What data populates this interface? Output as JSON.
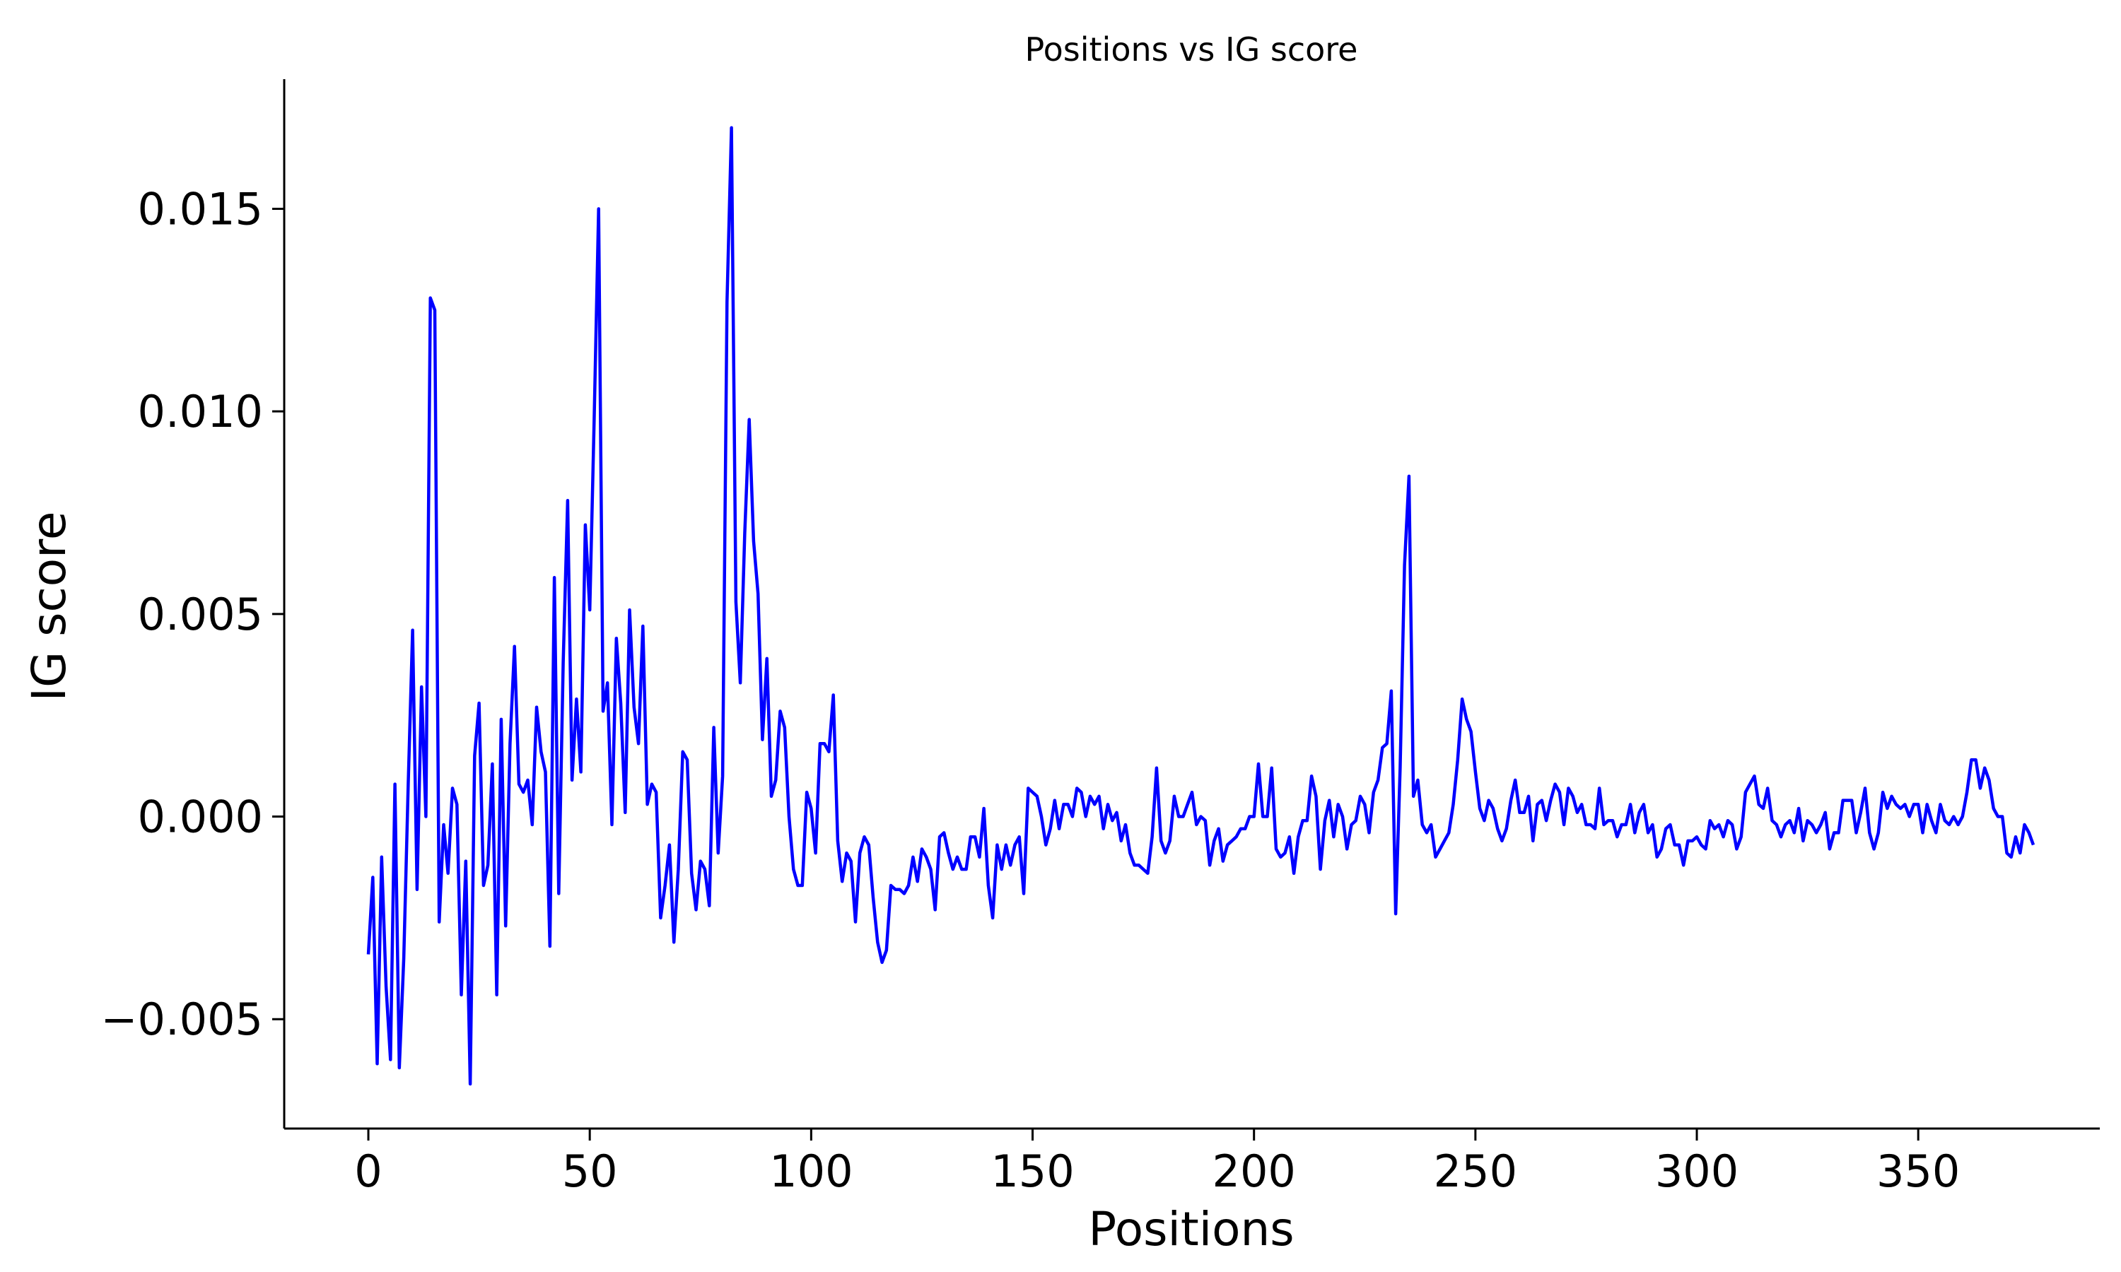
{
  "chart_data": {
    "type": "line",
    "title": "Positions vs IG score",
    "xlabel": "Positions",
    "ylabel": "IG score",
    "xlim": [
      -19,
      391
    ],
    "ylim": [
      -0.0077,
      0.0182
    ],
    "xticks": [
      0,
      50,
      100,
      150,
      200,
      250,
      300,
      350
    ],
    "xtick_labels": [
      "0",
      "50",
      "100",
      "150",
      "200",
      "250",
      "300",
      "350"
    ],
    "yticks": [
      -0.005,
      0.0,
      0.005,
      0.01,
      0.015
    ],
    "ytick_labels": [
      "−0.005",
      "0.000",
      "0.005",
      "0.010",
      "0.015"
    ],
    "grid": false,
    "legend": "none",
    "series": [
      {
        "color": "#0000ff",
        "values": [
          -0.0034,
          -0.0015,
          -0.0061,
          -0.001,
          -0.0042,
          -0.006,
          0.0008,
          -0.0062,
          -0.0035,
          0.0008,
          0.0046,
          -0.0018,
          0.0032,
          0,
          0.0128,
          0.0125,
          -0.0026,
          -0.0002,
          -0.0014,
          0.0007,
          0.0003,
          -0.0044,
          -0.0011,
          -0.0066,
          0.0015,
          0.0028,
          -0.0017,
          -0.0012,
          0.0013,
          -0.0044,
          0.0024,
          -0.0027,
          0.0018,
          0.0042,
          0.0008,
          0.0006,
          0.0009,
          -0.0002,
          0.0027,
          0.0016,
          0.0011,
          -0.0032,
          0.0059,
          -0.0019,
          0.0038,
          0.0078,
          0.0009,
          0.0029,
          0.0011,
          0.0072,
          0.0051,
          0.0098,
          0.015,
          0.0026,
          0.0033,
          -0.0002,
          0.0044,
          0.0028,
          0.0001,
          0.0051,
          0.0027,
          0.0018,
          0.0047,
          0.0003,
          0.0008,
          0.0006,
          -0.0025,
          -0.0017,
          -0.0007,
          -0.0031,
          -0.0013,
          0.0016,
          0.0014,
          -0.0014,
          -0.0023,
          -0.0011,
          -0.0013,
          -0.0022,
          0.0022,
          -0.0009,
          0.001,
          0.0127,
          0.017,
          0.0053,
          0.0033,
          0.007,
          0.0098,
          0.0068,
          0.0055,
          0.0019,
          0.0039,
          0.0005,
          0.0009,
          0.0026,
          0.0022,
          0,
          -0.0013,
          -0.0017,
          -0.0017,
          0.0006,
          0.0002,
          -0.0009,
          0.0018,
          0.0018,
          0.0016,
          0.003,
          -0.0006,
          -0.0016,
          -0.0009,
          -0.0011,
          -0.0026,
          -0.0009,
          -0.0005,
          -0.0007,
          -0.002,
          -0.0031,
          -0.0036,
          -0.0033,
          -0.0017,
          -0.0018,
          -0.0018,
          -0.0019,
          -0.0017,
          -0.001,
          -0.0016,
          -0.0008,
          -0.001,
          -0.0013,
          -0.0023,
          -0.0005,
          -0.0004,
          -0.0009,
          -0.0013,
          -0.001,
          -0.0013,
          -0.0013,
          -0.0005,
          -0.0005,
          -0.001,
          0.0002,
          -0.0017,
          -0.0025,
          -0.0007,
          -0.0013,
          -0.0007,
          -0.0012,
          -0.0007,
          -0.0005,
          -0.0019,
          0.0007,
          0.0006,
          0.0005,
          0,
          -0.0007,
          -0.0003,
          0.0004,
          -0.0003,
          0.0003,
          0.0003,
          0,
          0.0007,
          0.0006,
          0,
          0.0005,
          0.0003,
          0.0005,
          -0.0003,
          0.0003,
          -0.0001,
          0.0001,
          -0.0006,
          -0.0002,
          -0.0009,
          -0.0012,
          -0.0012,
          -0.0013,
          -0.0014,
          -0.0005,
          0.0012,
          -0.0006,
          -0.0009,
          -0.0006,
          0.0005,
          0,
          0,
          0.0003,
          0.0006,
          -0.0002,
          0,
          -0.0001,
          -0.0012,
          -0.0006,
          -0.0003,
          -0.0011,
          -0.0007,
          -0.0006,
          -0.0005,
          -0.0003,
          -0.0003,
          0,
          0,
          0.0013,
          0,
          0,
          0.0012,
          -0.0008,
          -0.001,
          -0.0009,
          -0.0005,
          -0.0014,
          -0.0005,
          -0.0001,
          -0.0001,
          0.001,
          0.0005,
          -0.0013,
          -0.0001,
          0.0004,
          -0.0005,
          0.0003,
          0,
          -0.0008,
          -0.0002,
          -0.0001,
          0.0005,
          0.0003,
          -0.0004,
          0.0006,
          0.0009,
          0.0017,
          0.0018,
          0.0031,
          -0.0024,
          0.0012,
          0.0062,
          0.0084,
          0.0005,
          0.0009,
          -0.0002,
          -0.0004,
          -0.0002,
          -0.001,
          -0.0008,
          -0.0006,
          -0.0004,
          0.0003,
          0.0014,
          0.0029,
          0.0024,
          0.0021,
          0.0011,
          0.0002,
          -0.0001,
          0.0004,
          0.0002,
          -0.0003,
          -0.0006,
          -0.0003,
          0.0004,
          0.0009,
          0.0001,
          0.0001,
          0.0005,
          -0.0006,
          0.0003,
          0.0004,
          -0.0001,
          0.0004,
          0.0008,
          0.0006,
          -0.0002,
          0.0007,
          0.0005,
          0.0001,
          0.0003,
          -0.0002,
          -0.0002,
          -0.0003,
          0.0007,
          -0.0002,
          -0.0001,
          -0.0001,
          -0.0005,
          -0.0002,
          -0.0002,
          0.0003,
          -0.0004,
          0.0001,
          0.0003,
          -0.0004,
          -0.0002,
          -0.001,
          -0.0008,
          -0.0003,
          -0.0002,
          -0.0007,
          -0.0007,
          -0.0012,
          -0.0006,
          -0.0006,
          -0.0005,
          -0.0007,
          -0.0008,
          -0.0001,
          -0.0003,
          -0.0002,
          -0.0005,
          -0.0001,
          -0.0002,
          -0.0008,
          -0.0005,
          0.0006,
          0.0008,
          0.001,
          0.0003,
          0.0002,
          0.0007,
          -0.0001,
          -0.0002,
          -0.0005,
          -0.0002,
          -0.0001,
          -0.0004,
          0.0002,
          -0.0006,
          -0.0001,
          -0.0002,
          -0.0004,
          -0.0002,
          0.0001,
          -0.0008,
          -0.0004,
          -0.0004,
          0.0004,
          0.0004,
          0.0004,
          -0.0004,
          0.0001,
          0.0007,
          -0.0004,
          -0.0008,
          -0.0004,
          0.0006,
          0.0002,
          0.0005,
          0.0003,
          0.0002,
          0.0003,
          0,
          0.0003,
          0.0003,
          -0.0004,
          0.0003,
          -0.0001,
          -0.0004,
          0.0003,
          -0.0001,
          -0.0002,
          0,
          -0.0002,
          0,
          0.0006,
          0.0014,
          0.0014,
          0.0007,
          0.0012,
          0.0009,
          0.0002,
          0,
          0,
          -0.0009,
          -0.001,
          -0.0005,
          -0.0009,
          -0.0002,
          -0.0004,
          -0.0007
        ]
      }
    ]
  }
}
